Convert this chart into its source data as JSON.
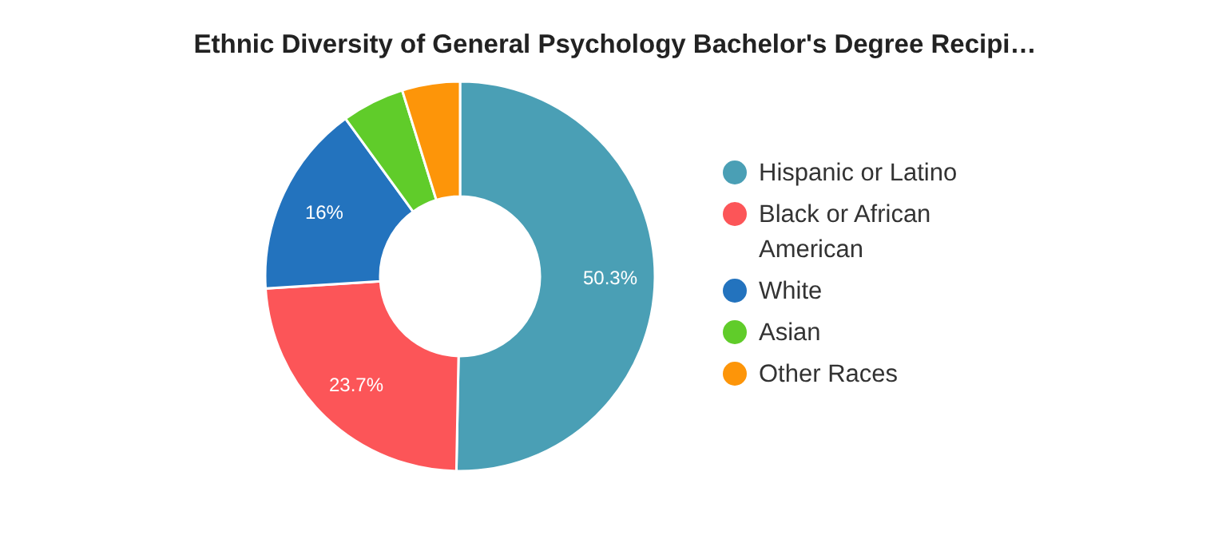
{
  "chart_data": {
    "type": "donut",
    "title": "Ethnic Diversity of General Psychology Bachelor's Degree Recipi…",
    "categories": [
      "Hispanic or Latino",
      "Black or African American",
      "White",
      "Asian",
      "Other Races"
    ],
    "values": [
      50.3,
      23.7,
      16,
      5.2,
      4.8
    ],
    "colors": [
      "#4a9fb5",
      "#fc5558",
      "#2373be",
      "#60cc2a",
      "#fd9509"
    ],
    "value_labels": [
      "50.3%",
      "23.7%",
      "16%",
      null,
      null
    ],
    "legend": "right"
  }
}
